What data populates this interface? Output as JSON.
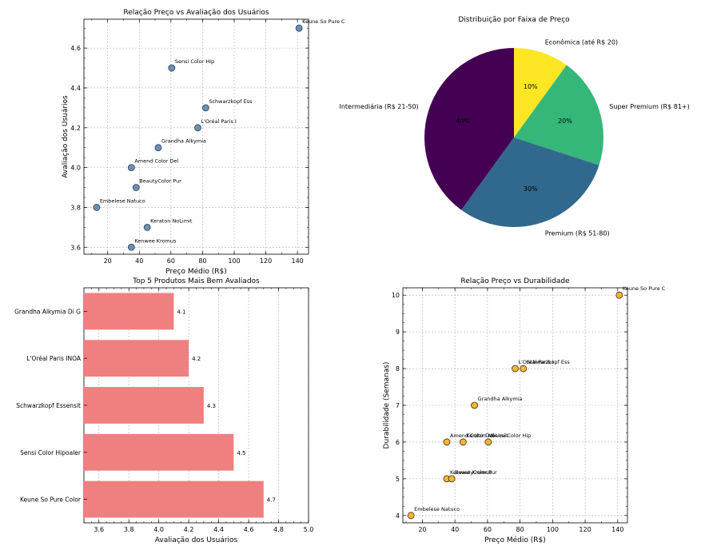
{
  "chart_data": [
    {
      "type": "scatter",
      "title": "Relação Preço vs Avaliação dos Usuários",
      "xlabel": "Preço Médio (R$)",
      "ylabel": "Avaliação dos Usuários",
      "xlim": [
        5,
        147
      ],
      "ylim": [
        3.565,
        4.745
      ],
      "xticks": [
        20,
        40,
        60,
        80,
        100,
        120,
        140
      ],
      "yticks": [
        3.6,
        3.8,
        4.0,
        4.2,
        4.4,
        4.6
      ],
      "grid": true,
      "marker_color": "#6b8fb5",
      "points": [
        {
          "x": 141,
          "y": 4.7,
          "label": "Keune So Pure C"
        },
        {
          "x": 60.5,
          "y": 4.5,
          "label": "Sensi Color Hip"
        },
        {
          "x": 82,
          "y": 4.3,
          "label": "Schwarzkopf Ess"
        },
        {
          "x": 77,
          "y": 4.2,
          "label": "L'Oréal Paris I"
        },
        {
          "x": 52,
          "y": 4.1,
          "label": "Grandha Alkymia"
        },
        {
          "x": 35,
          "y": 4.0,
          "label": "Amend Color Del"
        },
        {
          "x": 38,
          "y": 3.9,
          "label": "BeautyColor Pur"
        },
        {
          "x": 13,
          "y": 3.8,
          "label": "Embelese Natuco"
        },
        {
          "x": 45,
          "y": 3.7,
          "label": "Keraton NoLimit"
        },
        {
          "x": 35,
          "y": 3.6,
          "label": "Kenwee Kromus"
        }
      ]
    },
    {
      "type": "pie",
      "title": "Distribuição por Faixa de Preço",
      "slices": [
        {
          "label": "Econômica (até R$ 20)",
          "value": 10,
          "pct": "10%",
          "color": "#fde725"
        },
        {
          "label": "Super Premium (R$ 81+)",
          "value": 20,
          "pct": "20%",
          "color": "#35b779"
        },
        {
          "label": "Premium (R$ 51-80)",
          "value": 30,
          "pct": "30%",
          "color": "#31688e"
        },
        {
          "label": "Intermediária (R$ 21-50)",
          "value": 40,
          "pct": "40%",
          "color": "#440154"
        }
      ]
    },
    {
      "type": "bar",
      "orientation": "horizontal",
      "title": "Top 5 Produtos Mais Bem Avaliados",
      "xlabel": "Avaliação dos Usuários",
      "ylabel": "",
      "xlim": [
        3.5,
        5.0
      ],
      "xticks": [
        3.6,
        3.8,
        4.0,
        4.2,
        4.4,
        4.6,
        4.8,
        5.0
      ],
      "grid": true,
      "bar_color": "#f08080",
      "categories": [
        "Grandha Alkymia Di G",
        "L'Oréal Paris INOA",
        "Schwarzkopf Essensit",
        "Sensi Color Hipoaler",
        "Keune So Pure Color"
      ],
      "values": [
        4.1,
        4.2,
        4.3,
        4.5,
        4.7
      ],
      "value_labels": [
        "4.1",
        "4.2",
        "4.3",
        "4.5",
        "4.7"
      ]
    },
    {
      "type": "scatter",
      "title": "Relação Preço vs Durabilidade",
      "xlabel": "Preço Médio (R$)",
      "ylabel": "Durabilidade (Semanas)",
      "xlim": [
        8,
        146
      ],
      "ylim": [
        3.8,
        10.2
      ],
      "xticks": [
        20,
        40,
        60,
        80,
        100,
        120,
        140
      ],
      "yticks": [
        4,
        5,
        6,
        7,
        8,
        9,
        10
      ],
      "grid": true,
      "marker_color": "#f7b53c",
      "points": [
        {
          "x": 141,
          "y": 10,
          "label": "Keune So Pure C"
        },
        {
          "x": 77,
          "y": 8,
          "label": "L'Oréal Paris I"
        },
        {
          "x": 82,
          "y": 8,
          "label": "Schwarzkopf Ess"
        },
        {
          "x": 52,
          "y": 7,
          "label": "Grandha Alkymia"
        },
        {
          "x": 35,
          "y": 6,
          "label": "Amend Color Del"
        },
        {
          "x": 45,
          "y": 6,
          "label": "Keraton NoLimit"
        },
        {
          "x": 60.5,
          "y": 6,
          "label": "Sensi Color Hip"
        },
        {
          "x": 35,
          "y": 5,
          "label": "Kenwee Kromus"
        },
        {
          "x": 38,
          "y": 5,
          "label": "BeautyColor Pur"
        },
        {
          "x": 13,
          "y": 4,
          "label": "Embelese Natuco"
        }
      ]
    }
  ]
}
